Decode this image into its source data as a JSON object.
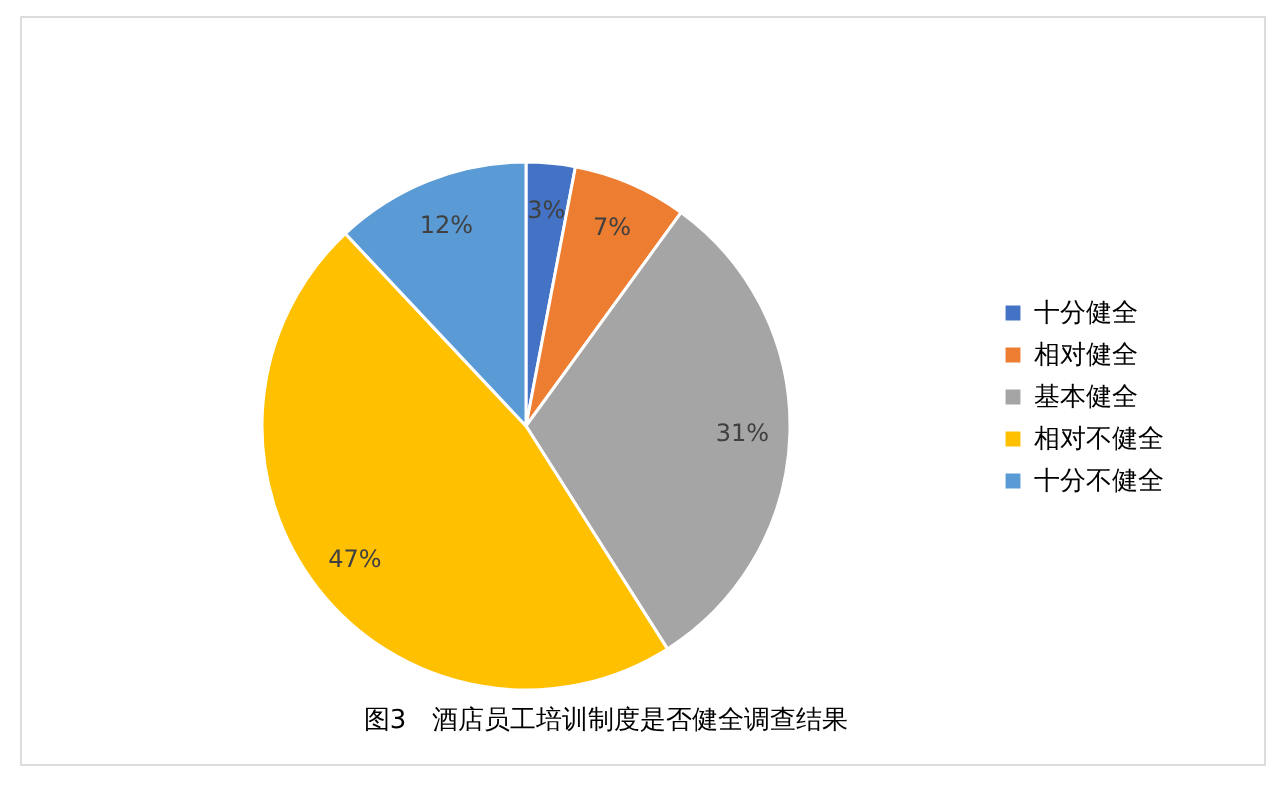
{
  "chart_data": {
    "type": "pie",
    "title": "图3　酒店员工培训制度是否健全调查结果",
    "categories": [
      "十分健全",
      "相对健全",
      "基本健全",
      "相对不健全",
      "十分不健全"
    ],
    "values": [
      3,
      7,
      31,
      47,
      12
    ],
    "colors": [
      "#4472c4",
      "#ed7d31",
      "#a5a5a5",
      "#ffc000",
      "#5b9bd5"
    ],
    "value_labels": [
      "3%",
      "7%",
      "31%",
      "47%",
      "12%"
    ],
    "legend": "right"
  }
}
